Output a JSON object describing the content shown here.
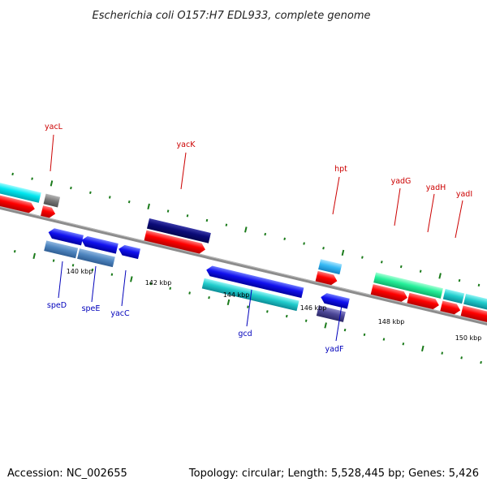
{
  "title": "Escherichia coli O157:H7 EDL933, complete genome",
  "footer": {
    "accession": "Accession: NC_002655",
    "topology": "Topology: circular; Length: 5,528,445 bp; Genes: 5,426"
  },
  "colors": {
    "backbone": "#8c8c8c",
    "tick": "#1a7a1a",
    "forward_label": "#cc0000",
    "reverse_label": "#0000bb"
  },
  "tick_labels": [
    "140 kbp",
    "142 kbp",
    "144 kbp",
    "146 kbp",
    "148 kbp",
    "150 kbp"
  ],
  "gene_labels": {
    "forward": [
      "yacL",
      "yacK",
      "hpt",
      "yadG",
      "yadH",
      "yadI"
    ],
    "reverse": [
      "speD",
      "speE",
      "yacC",
      "gcd",
      "yadF"
    ]
  }
}
